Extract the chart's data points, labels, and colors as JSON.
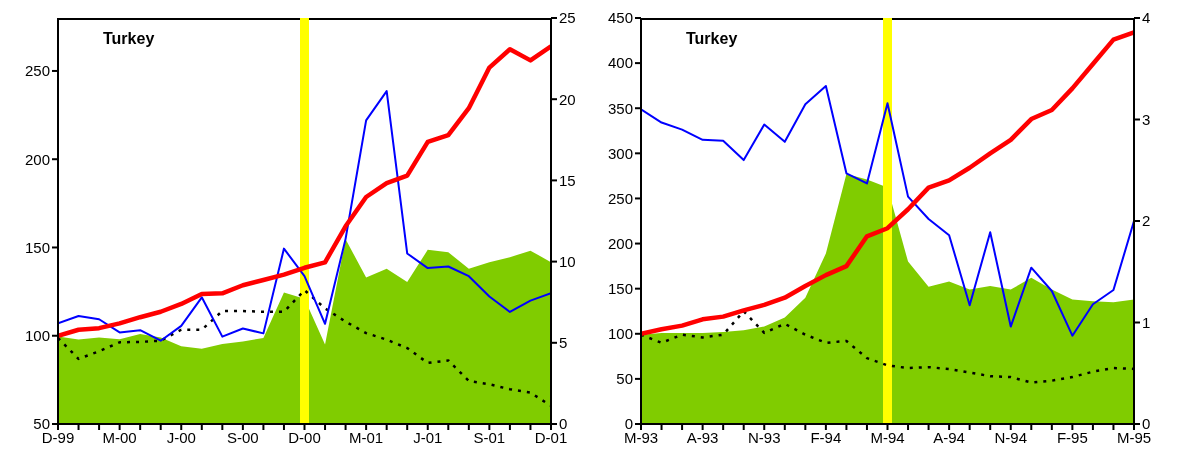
{
  "chart_data": [
    {
      "type": "line",
      "title": "Turkey",
      "categories": [
        "D-99",
        null,
        null,
        "M-00",
        null,
        null,
        "J-00",
        null,
        null,
        "S-00",
        null,
        null,
        "D-00",
        null,
        null,
        "M-01",
        null,
        null,
        "J-01",
        null,
        null,
        "S-01",
        null,
        null,
        "D-01"
      ],
      "series": [
        {
          "type": "area",
          "color": "#80cc00",
          "values": [
            99.6,
            97.8,
            99,
            98,
            101,
            99,
            94,
            92.7,
            95.3,
            96.8,
            98.7,
            124.5,
            121,
            95,
            154.7,
            133,
            138,
            130.4,
            148.7,
            147.3,
            138,
            141.7,
            144.5,
            148.2,
            141.7
          ]
        },
        {
          "color": "#000000",
          "line_style": "dotted",
          "values": [
            98.7,
            86.9,
            91.2,
            96.3,
            96.5,
            97.2,
            103.4,
            103.4,
            114,
            114,
            113.6,
            113.6,
            125.8,
            115.5,
            108,
            101.5,
            97.8,
            93,
            84.6,
            86,
            74.4,
            72.5,
            69.7,
            67.8,
            60.3
          ]
        },
        {
          "color": "#0000ff",
          "axis": "y2",
          "values": [
            6.2,
            6.65,
            6.45,
            5.64,
            5.78,
            5.13,
            6.04,
            7.8,
            5.38,
            5.88,
            5.58,
            10.8,
            9.1,
            6.17,
            11.4,
            18.7,
            20.5,
            10.5,
            9.6,
            9.7,
            9.1,
            7.85,
            6.9,
            7.6,
            8.05
          ]
        },
        {
          "color": "#ff0000",
          "values": [
            100,
            103.4,
            104.3,
            107,
            110.5,
            113.6,
            118,
            123.7,
            124,
            128.6,
            131.6,
            134.6,
            138.5,
            141.6,
            162,
            178.6,
            186.5,
            190.7,
            209.8,
            213.6,
            228.9,
            251.9,
            262.3,
            256,
            264
          ]
        }
      ],
      "ylim": [
        50,
        280
      ],
      "yticks": [
        50,
        100,
        150,
        200,
        250
      ],
      "y2lim": [
        0,
        25
      ],
      "y2ticks": [
        0,
        5,
        10,
        15,
        20,
        25
      ],
      "grid": false,
      "marker": "none",
      "line_style": "solid",
      "ref_lines": [
        {
          "axis": "x",
          "value": "D-00",
          "color": "#ffff00"
        }
      ]
    },
    {
      "type": "line",
      "title": "Turkey",
      "categories": [
        "M-93",
        null,
        null,
        "A-93",
        null,
        null,
        "N-93",
        null,
        null,
        "F-94",
        null,
        null,
        "M-94",
        null,
        null,
        "A-94",
        null,
        null,
        "N-94",
        null,
        null,
        "F-95",
        null,
        null,
        "M-95"
      ],
      "series": [
        {
          "type": "area",
          "color": "#80cc00",
          "values": [
            99,
            101,
            101,
            101,
            102,
            104,
            108,
            118,
            140,
            189,
            277,
            271,
            262,
            180,
            152,
            158,
            149,
            153,
            149,
            162,
            149,
            138,
            136,
            135,
            138
          ]
        },
        {
          "color": "#000000",
          "line_style": "dotted",
          "values": [
            99,
            90,
            99,
            96,
            99,
            125,
            101,
            111,
            99,
            90,
            92,
            73,
            65,
            62,
            63,
            61,
            57,
            53,
            52,
            46,
            48,
            52,
            58,
            62,
            61
          ]
        },
        {
          "color": "#0000ff",
          "axis": "y2",
          "values": [
            3.1,
            2.97,
            2.9,
            2.8,
            2.79,
            2.6,
            2.95,
            2.78,
            3.15,
            3.33,
            2.47,
            2.37,
            3.16,
            2.24,
            2.02,
            1.86,
            1.17,
            1.89,
            0.96,
            1.54,
            1.31,
            0.87,
            1.18,
            1.32,
            2.0
          ]
        },
        {
          "color": "#ff0000",
          "values": [
            100,
            105,
            109,
            116,
            119,
            126,
            132,
            140,
            153,
            165,
            175,
            208,
            217,
            238,
            262,
            270,
            284,
            300,
            315,
            338,
            348,
            372,
            399,
            426,
            434
          ]
        }
      ],
      "ylim": [
        0,
        450
      ],
      "yticks": [
        0,
        50,
        100,
        150,
        200,
        250,
        300,
        350,
        400,
        450
      ],
      "y2lim": [
        0,
        4
      ],
      "y2ticks": [
        0,
        1,
        2,
        3,
        4
      ],
      "grid": false,
      "marker": "none",
      "line_style": "solid",
      "ref_lines": [
        {
          "axis": "x",
          "value": "M-94",
          "color": "#ffff00"
        }
      ]
    }
  ]
}
